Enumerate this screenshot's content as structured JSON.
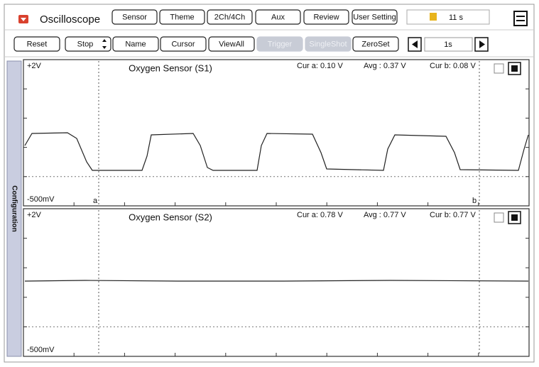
{
  "header": {
    "title": "Oscilloscope",
    "buttons": [
      "Sensor",
      "Theme",
      "2Ch/4Ch",
      "Aux",
      "Review",
      "User Setting"
    ],
    "time": "11 s"
  },
  "toolbar": {
    "buttons": [
      "Reset",
      "Stop",
      "Name",
      "Cursor",
      "ViewAll",
      "Trigger",
      "SingleShot",
      "ZeroSet"
    ],
    "timebase": "1s"
  },
  "side_tab": "Configuration",
  "panels": [
    {
      "top_label": "+2V",
      "title": "Oxygen Sensor (S1)",
      "cur_a": "Cur a: 0.10 V",
      "avg": "Avg : 0.37 V",
      "cur_b": "Cur b: 0.08 V",
      "bottom_label": "-500mV",
      "cursor_a": "a",
      "cursor_b": "b"
    },
    {
      "top_label": "+2V",
      "title": "Oxygen Sensor (S2)",
      "cur_a": "Cur a: 0.78 V",
      "avg": "Avg : 0.77 V",
      "cur_b": "Cur b: 0.77 V",
      "bottom_label": "-500mV"
    }
  ]
}
